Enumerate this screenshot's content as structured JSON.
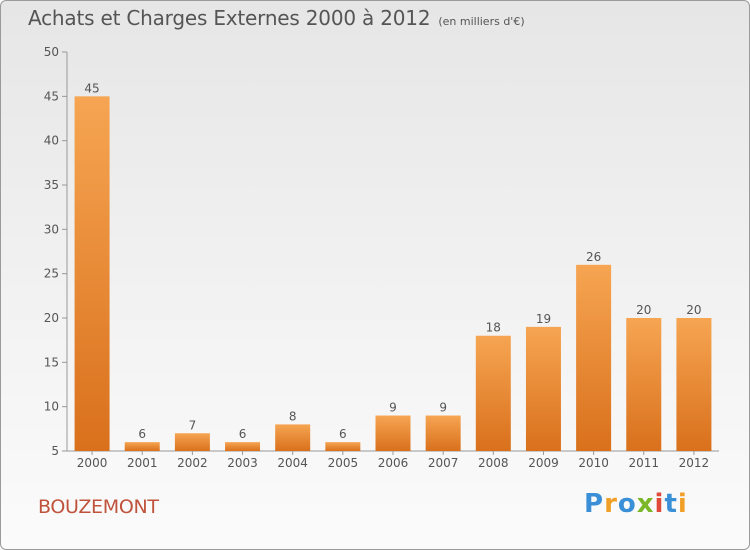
{
  "header": {
    "title": "Achats et Charges Externes 2000 à 2012",
    "subtitle": "(en milliers d'€)"
  },
  "footer": {
    "commune": "BOUZEMONT",
    "logo_letters": [
      {
        "ch": "P",
        "color": "#3a8fd6"
      },
      {
        "ch": "r",
        "color": "#f0a028"
      },
      {
        "ch": "o",
        "color": "#3a8fd6"
      },
      {
        "ch": "x",
        "color": "#7ab829"
      },
      {
        "ch": "i",
        "color": "#e04a3a"
      },
      {
        "ch": "t",
        "color": "#3a8fd6"
      },
      {
        "ch": "i",
        "color": "#f0a028"
      }
    ]
  },
  "colors": {
    "bar_light": "#f6a552",
    "bar_dark": "#d9701c",
    "axis": "#999999",
    "text": "#555555"
  },
  "chart_data": {
    "type": "bar",
    "title": "Achats et Charges Externes 2000 à 2012",
    "subtitle": "(en milliers d'€)",
    "xlabel": "",
    "ylabel": "",
    "categories": [
      "2000",
      "2001",
      "2002",
      "2003",
      "2004",
      "2005",
      "2006",
      "2007",
      "2008",
      "2009",
      "2010",
      "2011",
      "2012"
    ],
    "values": [
      45,
      6,
      7,
      6,
      8,
      6,
      9,
      9,
      18,
      19,
      26,
      20,
      20
    ],
    "ylim": [
      5,
      50
    ],
    "yticks": [
      5,
      10,
      15,
      20,
      25,
      30,
      35,
      40,
      45,
      50
    ],
    "grid": false,
    "legend": "none"
  }
}
